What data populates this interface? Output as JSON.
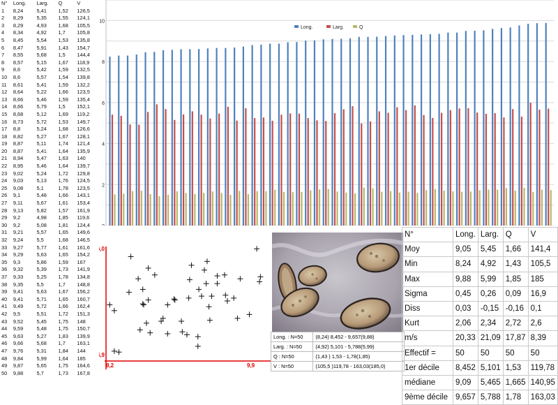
{
  "raw_table": {
    "headers": [
      "N°",
      "Long.",
      "Larg.",
      "Q",
      "V"
    ],
    "rows": [
      [
        "1",
        "8,24",
        "5,41",
        "1,52",
        "126,5"
      ],
      [
        "2",
        "8,29",
        "5,35",
        "1,55",
        "124,1"
      ],
      [
        "3",
        "8,29",
        "4,93",
        "1,68",
        "105,5"
      ],
      [
        "4",
        "8,34",
        "4,92",
        "1,7",
        "105,8"
      ],
      [
        "5",
        "8,45",
        "5,54",
        "1,53",
        "135,8"
      ],
      [
        "6",
        "8,47",
        "5,91",
        "1,43",
        "154,7"
      ],
      [
        "7",
        "8,55",
        "5,68",
        "1,5",
        "144,4"
      ],
      [
        "8",
        "8,57",
        "5,15",
        "1,67",
        "118,9"
      ],
      [
        "9",
        "8,6",
        "5,42",
        "1,59",
        "132,5"
      ],
      [
        "10",
        "8,6",
        "5,57",
        "1,54",
        "139,8"
      ],
      [
        "11",
        "8,61",
        "5,41",
        "1,59",
        "132,2"
      ],
      [
        "12",
        "8,64",
        "5,22",
        "1,66",
        "123,5"
      ],
      [
        "13",
        "8,66",
        "5,46",
        "1,59",
        "135,4"
      ],
      [
        "14",
        "8,66",
        "5,79",
        "1,5",
        "152,1"
      ],
      [
        "15",
        "8,68",
        "5,12",
        "1,69",
        "119,2"
      ],
      [
        "16",
        "8,73",
        "5,72",
        "1,53",
        "149,7"
      ],
      [
        "17",
        "8,8",
        "5,24",
        "1,68",
        "126,6"
      ],
      [
        "18",
        "8,82",
        "5,27",
        "1,67",
        "128,1"
      ],
      [
        "19",
        "8,87",
        "5,11",
        "1,74",
        "121,4"
      ],
      [
        "20",
        "8,87",
        "5,41",
        "1,64",
        "135,9"
      ],
      [
        "21",
        "8,94",
        "5,47",
        "1,63",
        "140"
      ],
      [
        "22",
        "8,95",
        "5,46",
        "1,64",
        "139,7"
      ],
      [
        "23",
        "9,02",
        "5,24",
        "1,72",
        "129,8"
      ],
      [
        "24",
        "9,03",
        "5,13",
        "1,76",
        "124,5"
      ],
      [
        "25",
        "9,08",
        "5,1",
        "1,78",
        "123,5"
      ],
      [
        "26",
        "9,1",
        "5,48",
        "1,66",
        "143,1"
      ],
      [
        "27",
        "9,11",
        "5,67",
        "1,61",
        "153,4"
      ],
      [
        "28",
        "9,13",
        "5,82",
        "1,57",
        "161,9"
      ],
      [
        "29",
        "9,2",
        "4,98",
        "1,85",
        "119,6"
      ],
      [
        "30",
        "9,2",
        "5,08",
        "1,81",
        "124,4"
      ],
      [
        "31",
        "9,21",
        "5,57",
        "1,65",
        "149,6"
      ],
      [
        "32",
        "9,24",
        "5,5",
        "1,68",
        "146,5"
      ],
      [
        "33",
        "9,27",
        "5,77",
        "1,61",
        "161,6"
      ],
      [
        "34",
        "9,29",
        "5,63",
        "1,65",
        "154,2"
      ],
      [
        "35",
        "9,3",
        "5,86",
        "1,59",
        "167"
      ],
      [
        "36",
        "9,32",
        "5,39",
        "1,73",
        "141,9"
      ],
      [
        "37",
        "9,33",
        "5,25",
        "1,78",
        "134,8"
      ],
      [
        "38",
        "9,35",
        "5,5",
        "1,7",
        "148,8"
      ],
      [
        "39",
        "9,41",
        "5,63",
        "1,67",
        "156,2"
      ],
      [
        "40",
        "9,41",
        "5,71",
        "1,65",
        "160,7"
      ],
      [
        "41",
        "9,49",
        "5,72",
        "1,66",
        "162,4"
      ],
      [
        "42",
        "9,5",
        "5,51",
        "1,72",
        "151,3"
      ],
      [
        "43",
        "9,52",
        "5,45",
        "1,75",
        "148"
      ],
      [
        "44",
        "9,59",
        "5,48",
        "1,75",
        "150,7"
      ],
      [
        "45",
        "9,63",
        "5,27",
        "1,83",
        "139,9"
      ],
      [
        "46",
        "9,66",
        "5,68",
        "1,7",
        "163,1"
      ],
      [
        "47",
        "9,76",
        "5,31",
        "1,84",
        "144"
      ],
      [
        "48",
        "9,84",
        "5,99",
        "1,64",
        "185"
      ],
      [
        "49",
        "9,87",
        "5,65",
        "1,75",
        "164,6"
      ],
      [
        "50",
        "9,88",
        "5,7",
        "1,73",
        "167,8"
      ]
    ]
  },
  "chart_data": [
    {
      "type": "bar",
      "legend": [
        "Long.",
        "Larg.",
        "Q"
      ],
      "legend_position": "top",
      "colors": [
        "#4f81bd",
        "#c0504d",
        "#b8b86a"
      ],
      "ylim": [
        0,
        11
      ],
      "yticks": [
        "0",
        "2",
        "4",
        "6",
        "8",
        "10"
      ],
      "grid": true,
      "series": [
        {
          "name": "Long.",
          "values": [
            8.24,
            8.29,
            8.29,
            8.34,
            8.45,
            8.47,
            8.55,
            8.57,
            8.6,
            8.6,
            8.61,
            8.64,
            8.66,
            8.66,
            8.68,
            8.73,
            8.8,
            8.82,
            8.87,
            8.87,
            8.94,
            8.95,
            9.02,
            9.03,
            9.08,
            9.1,
            9.11,
            9.13,
            9.2,
            9.2,
            9.21,
            9.24,
            9.27,
            9.29,
            9.3,
            9.32,
            9.33,
            9.35,
            9.41,
            9.41,
            9.49,
            9.5,
            9.52,
            9.59,
            9.63,
            9.66,
            9.76,
            9.84,
            9.87,
            9.88
          ]
        },
        {
          "name": "Larg.",
          "values": [
            5.41,
            5.35,
            4.93,
            4.92,
            5.54,
            5.91,
            5.68,
            5.15,
            5.42,
            5.57,
            5.41,
            5.22,
            5.46,
            5.79,
            5.12,
            5.72,
            5.24,
            5.27,
            5.11,
            5.41,
            5.47,
            5.46,
            5.24,
            5.13,
            5.1,
            5.48,
            5.67,
            5.82,
            4.98,
            5.08,
            5.57,
            5.5,
            5.77,
            5.63,
            5.86,
            5.39,
            5.25,
            5.5,
            5.63,
            5.71,
            5.72,
            5.51,
            5.45,
            5.48,
            5.27,
            5.68,
            5.31,
            5.99,
            5.65,
            5.7
          ]
        },
        {
          "name": "Q",
          "values": [
            1.52,
            1.55,
            1.68,
            1.7,
            1.53,
            1.43,
            1.5,
            1.67,
            1.59,
            1.54,
            1.59,
            1.66,
            1.59,
            1.5,
            1.69,
            1.53,
            1.68,
            1.67,
            1.74,
            1.64,
            1.63,
            1.64,
            1.72,
            1.76,
            1.78,
            1.66,
            1.61,
            1.57,
            1.85,
            1.81,
            1.65,
            1.68,
            1.61,
            1.65,
            1.59,
            1.73,
            1.78,
            1.7,
            1.67,
            1.65,
            1.66,
            1.72,
            1.75,
            1.75,
            1.83,
            1.7,
            1.84,
            1.64,
            1.75,
            1.73
          ]
        }
      ]
    },
    {
      "type": "scatter",
      "xlim": [
        8.2,
        9.9
      ],
      "ylim": [
        4.9,
        6.0
      ],
      "x_min_label": "8,2",
      "x_max_label": "9,9",
      "y_min_label": "4,9",
      "y_max_label": "6,0",
      "axis_color": "#e00000",
      "points": [
        [
          8.24,
          5.41
        ],
        [
          8.29,
          5.35
        ],
        [
          8.29,
          4.93
        ],
        [
          8.34,
          4.92
        ],
        [
          8.45,
          5.54
        ],
        [
          8.47,
          5.91
        ],
        [
          8.55,
          5.68
        ],
        [
          8.57,
          5.15
        ],
        [
          8.6,
          5.42
        ],
        [
          8.6,
          5.57
        ],
        [
          8.61,
          5.41
        ],
        [
          8.64,
          5.22
        ],
        [
          8.66,
          5.46
        ],
        [
          8.66,
          5.79
        ],
        [
          8.68,
          5.12
        ],
        [
          8.73,
          5.72
        ],
        [
          8.8,
          5.24
        ],
        [
          8.82,
          5.27
        ],
        [
          8.87,
          5.11
        ],
        [
          8.87,
          5.41
        ],
        [
          8.94,
          5.47
        ],
        [
          8.95,
          5.46
        ],
        [
          9.02,
          5.24
        ],
        [
          9.03,
          5.13
        ],
        [
          9.08,
          5.1
        ],
        [
          9.1,
          5.48
        ],
        [
          9.11,
          5.67
        ],
        [
          9.13,
          5.82
        ],
        [
          9.2,
          4.98
        ],
        [
          9.2,
          5.08
        ],
        [
          9.21,
          5.57
        ],
        [
          9.24,
          5.5
        ],
        [
          9.27,
          5.77
        ],
        [
          9.29,
          5.63
        ],
        [
          9.3,
          5.86
        ],
        [
          9.32,
          5.39
        ],
        [
          9.33,
          5.25
        ],
        [
          9.35,
          5.5
        ],
        [
          9.41,
          5.63
        ],
        [
          9.41,
          5.71
        ],
        [
          9.49,
          5.72
        ],
        [
          9.5,
          5.51
        ],
        [
          9.52,
          5.45
        ],
        [
          9.59,
          5.48
        ],
        [
          9.63,
          5.27
        ],
        [
          9.66,
          5.68
        ],
        [
          9.76,
          5.31
        ],
        [
          9.84,
          5.99
        ],
        [
          9.87,
          5.65
        ],
        [
          9.88,
          5.7
        ]
      ]
    }
  ],
  "ci_table": [
    [
      "Long. : N=50",
      "(8,24) 8,452 - 9,657(9,88)"
    ],
    [
      "Larg. : N=50",
      "(4,92) 5,101 - 5,788(5,99)"
    ],
    [
      "Q : N=50",
      "(1,43 ) 1,53 - 1,78(1,85)"
    ],
    [
      "V : N=50",
      "(105,5 )119,78 - 163,03(185,0)"
    ]
  ],
  "stats_table": {
    "headers": [
      "N°",
      "Long.",
      "Larg.",
      "Q",
      "V"
    ],
    "rows": [
      [
        "Moy",
        "9,05",
        "5,45",
        "1,66",
        "141,4"
      ],
      [
        "Min",
        "8,24",
        "4,92",
        "1,43",
        "105,5"
      ],
      [
        "Max",
        "9,88",
        "5,99",
        "1,85",
        "185"
      ],
      [
        "Sigma",
        "0,45",
        "0,26",
        "0,09",
        "16,9"
      ],
      [
        "Diss",
        "0,03",
        "-0,15",
        "-0,16",
        "0,1"
      ],
      [
        "Kurt",
        "2,06",
        "2,34",
        "2,72",
        "2,6"
      ],
      [
        "m/s",
        "20,33",
        "21,09",
        "17,87",
        "8,39"
      ],
      [
        "Effectif =",
        "50",
        "50",
        "50",
        "50"
      ],
      [
        "1er décile",
        "8,452",
        "5,101",
        "1,53",
        "119,78"
      ],
      [
        "médiane",
        "9,09",
        "5,465",
        "1,665",
        "140,95"
      ],
      [
        "9ème décile",
        "9,657",
        "5,788",
        "1,78",
        "163,03"
      ]
    ]
  }
}
